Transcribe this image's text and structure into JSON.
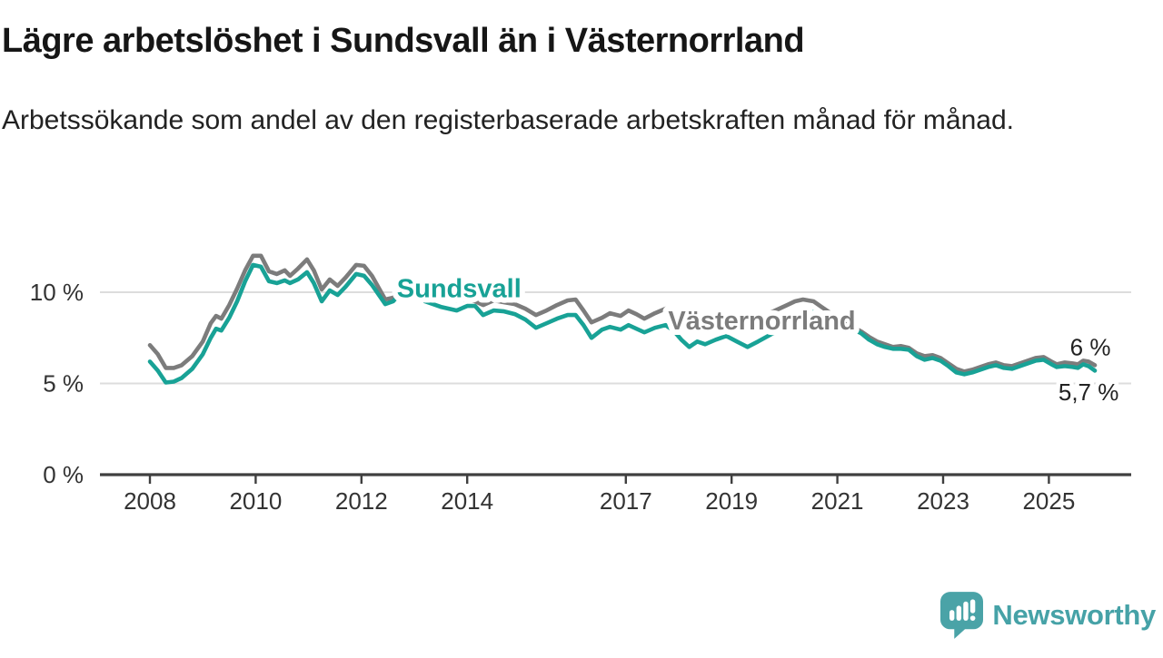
{
  "header": {
    "title": "Lägre arbetslöshet i Sundsvall än i Västernorrland",
    "subtitle": "Arbetssökande som andel av den registerbaserade arbetskraften månad för månad."
  },
  "colors": {
    "sundsvall_teal": "#18a296",
    "vasternorrland_gray": "#7c7c7c",
    "axis_line": "#3f3f3f",
    "axis_text": "#333333",
    "gridline": "#dddddd",
    "end_label_text": "#222222",
    "brand_teal": "#4aa3a7"
  },
  "chart_data": {
    "type": "line",
    "title": "Lägre arbetslöshet i Sundsvall än i Västernorrland",
    "xlabel": "",
    "ylabel": "Arbetssökande som andel av den registerbaserade arbetskraften",
    "legend_position": "inline",
    "grid": "horizontal",
    "x_axis": {
      "range": [
        2007.8,
        2026.5
      ],
      "ticks": [
        {
          "label": "2008",
          "year": 2008
        },
        {
          "label": "2010",
          "year": 2010
        },
        {
          "label": "2012",
          "year": 2012
        },
        {
          "label": "2014",
          "year": 2014
        },
        {
          "label": "2017",
          "year": 2017
        },
        {
          "label": "2019",
          "year": 2019
        },
        {
          "label": "2021",
          "year": 2021
        },
        {
          "label": "2023",
          "year": 2023
        },
        {
          "label": "2025",
          "year": 2025
        }
      ]
    },
    "y_axis": {
      "range": [
        0,
        12.5
      ],
      "unit": "%",
      "ticks": [
        {
          "label": "0 %",
          "value": 0
        },
        {
          "label": "5 %",
          "value": 5
        },
        {
          "label": "10 %",
          "value": 10
        }
      ],
      "gridlines": [
        5,
        10
      ]
    },
    "series": [
      {
        "name": "Västernorrland",
        "color": "#7c7c7c",
        "inline_label": {
          "text": "Västernorrland",
          "year": 2017.8,
          "value": 7.95
        },
        "end_label": {
          "text": "6 %",
          "year": 2025.4,
          "value": 6.55
        },
        "points": [
          [
            2008.0,
            7.1
          ],
          [
            2008.15,
            6.6
          ],
          [
            2008.3,
            5.85
          ],
          [
            2008.45,
            5.85
          ],
          [
            2008.6,
            6.0
          ],
          [
            2008.8,
            6.5
          ],
          [
            2009.0,
            7.3
          ],
          [
            2009.15,
            8.3
          ],
          [
            2009.25,
            8.7
          ],
          [
            2009.35,
            8.55
          ],
          [
            2009.5,
            9.3
          ],
          [
            2009.65,
            10.2
          ],
          [
            2009.8,
            11.2
          ],
          [
            2009.95,
            12.0
          ],
          [
            2010.1,
            12.0
          ],
          [
            2010.25,
            11.15
          ],
          [
            2010.4,
            11.0
          ],
          [
            2010.55,
            11.2
          ],
          [
            2010.65,
            10.9
          ],
          [
            2010.8,
            11.3
          ],
          [
            2010.97,
            11.8
          ],
          [
            2011.1,
            11.2
          ],
          [
            2011.25,
            10.15
          ],
          [
            2011.4,
            10.7
          ],
          [
            2011.55,
            10.35
          ],
          [
            2011.7,
            10.8
          ],
          [
            2011.9,
            11.5
          ],
          [
            2012.05,
            11.45
          ],
          [
            2012.2,
            10.9
          ],
          [
            2012.45,
            9.6
          ],
          [
            2012.6,
            9.7
          ],
          [
            2012.75,
            10.1
          ],
          [
            2012.95,
            10.8
          ],
          [
            2013.2,
            10.2
          ],
          [
            2013.5,
            9.8
          ],
          [
            2013.8,
            9.55
          ],
          [
            2014.0,
            9.6
          ],
          [
            2014.15,
            9.5
          ],
          [
            2014.3,
            9.3
          ],
          [
            2014.5,
            9.55
          ],
          [
            2014.7,
            9.45
          ],
          [
            2014.9,
            9.35
          ],
          [
            2015.1,
            9.1
          ],
          [
            2015.3,
            8.75
          ],
          [
            2015.5,
            9.0
          ],
          [
            2015.7,
            9.3
          ],
          [
            2015.9,
            9.55
          ],
          [
            2016.05,
            9.6
          ],
          [
            2016.2,
            9.0
          ],
          [
            2016.35,
            8.35
          ],
          [
            2016.55,
            8.6
          ],
          [
            2016.7,
            8.85
          ],
          [
            2016.9,
            8.7
          ],
          [
            2017.05,
            9.0
          ],
          [
            2017.2,
            8.8
          ],
          [
            2017.35,
            8.55
          ],
          [
            2017.55,
            8.85
          ],
          [
            2017.75,
            9.1
          ],
          [
            2017.9,
            8.9
          ],
          [
            2018.05,
            8.4
          ],
          [
            2018.2,
            8.0
          ],
          [
            2018.35,
            8.3
          ],
          [
            2018.5,
            8.05
          ],
          [
            2018.7,
            8.35
          ],
          [
            2018.9,
            8.6
          ],
          [
            2019.1,
            8.1
          ],
          [
            2019.3,
            8.2
          ],
          [
            2019.5,
            8.5
          ],
          [
            2019.75,
            8.9
          ],
          [
            2019.9,
            9.1
          ],
          [
            2020.05,
            9.3
          ],
          [
            2020.2,
            9.5
          ],
          [
            2020.35,
            9.6
          ],
          [
            2020.55,
            9.5
          ],
          [
            2020.7,
            9.2
          ],
          [
            2020.85,
            8.9
          ],
          [
            2021.0,
            8.5
          ],
          [
            2021.15,
            8.3
          ],
          [
            2021.3,
            8.1
          ],
          [
            2021.45,
            7.85
          ],
          [
            2021.6,
            7.55
          ],
          [
            2021.75,
            7.3
          ],
          [
            2021.9,
            7.15
          ],
          [
            2022.05,
            7.0
          ],
          [
            2022.2,
            7.05
          ],
          [
            2022.35,
            6.95
          ],
          [
            2022.5,
            6.65
          ],
          [
            2022.65,
            6.5
          ],
          [
            2022.8,
            6.55
          ],
          [
            2022.95,
            6.4
          ],
          [
            2023.1,
            6.1
          ],
          [
            2023.25,
            5.8
          ],
          [
            2023.4,
            5.65
          ],
          [
            2023.55,
            5.75
          ],
          [
            2023.7,
            5.9
          ],
          [
            2023.85,
            6.05
          ],
          [
            2024.0,
            6.15
          ],
          [
            2024.15,
            6.0
          ],
          [
            2024.3,
            5.95
          ],
          [
            2024.45,
            6.1
          ],
          [
            2024.6,
            6.25
          ],
          [
            2024.75,
            6.4
          ],
          [
            2024.9,
            6.45
          ],
          [
            2025.05,
            6.2
          ],
          [
            2025.15,
            6.05
          ],
          [
            2025.3,
            6.15
          ],
          [
            2025.45,
            6.1
          ],
          [
            2025.55,
            6.05
          ],
          [
            2025.65,
            6.25
          ],
          [
            2025.75,
            6.2
          ],
          [
            2025.87,
            6.0
          ]
        ]
      },
      {
        "name": "Sundsvall",
        "color": "#18a296",
        "inline_label": {
          "text": "Sundsvall",
          "year": 2012.67,
          "value": 9.72
        },
        "end_label": {
          "text": "5,7 %",
          "year": 2025.18,
          "value": 4.08
        },
        "points": [
          [
            2008.0,
            6.2
          ],
          [
            2008.15,
            5.7
          ],
          [
            2008.3,
            5.05
          ],
          [
            2008.45,
            5.1
          ],
          [
            2008.6,
            5.3
          ],
          [
            2008.8,
            5.8
          ],
          [
            2009.0,
            6.6
          ],
          [
            2009.15,
            7.5
          ],
          [
            2009.25,
            8.0
          ],
          [
            2009.35,
            7.9
          ],
          [
            2009.5,
            8.6
          ],
          [
            2009.65,
            9.5
          ],
          [
            2009.8,
            10.6
          ],
          [
            2009.95,
            11.5
          ],
          [
            2010.1,
            11.4
          ],
          [
            2010.25,
            10.6
          ],
          [
            2010.4,
            10.5
          ],
          [
            2010.55,
            10.65
          ],
          [
            2010.65,
            10.5
          ],
          [
            2010.8,
            10.7
          ],
          [
            2010.97,
            11.1
          ],
          [
            2011.1,
            10.5
          ],
          [
            2011.25,
            9.5
          ],
          [
            2011.4,
            10.1
          ],
          [
            2011.55,
            9.85
          ],
          [
            2011.7,
            10.3
          ],
          [
            2011.9,
            11.0
          ],
          [
            2012.05,
            10.9
          ],
          [
            2012.2,
            10.4
          ],
          [
            2012.45,
            9.35
          ],
          [
            2012.6,
            9.5
          ],
          [
            2012.75,
            10.0
          ],
          [
            2012.95,
            10.3
          ],
          [
            2013.2,
            9.5
          ],
          [
            2013.5,
            9.2
          ],
          [
            2013.8,
            9.0
          ],
          [
            2014.0,
            9.25
          ],
          [
            2014.15,
            9.25
          ],
          [
            2014.3,
            8.75
          ],
          [
            2014.5,
            9.0
          ],
          [
            2014.7,
            8.95
          ],
          [
            2014.9,
            8.8
          ],
          [
            2015.1,
            8.5
          ],
          [
            2015.3,
            8.05
          ],
          [
            2015.5,
            8.3
          ],
          [
            2015.7,
            8.55
          ],
          [
            2015.9,
            8.75
          ],
          [
            2016.05,
            8.75
          ],
          [
            2016.2,
            8.2
          ],
          [
            2016.35,
            7.5
          ],
          [
            2016.55,
            7.95
          ],
          [
            2016.7,
            8.1
          ],
          [
            2016.9,
            7.95
          ],
          [
            2017.05,
            8.2
          ],
          [
            2017.2,
            8.0
          ],
          [
            2017.35,
            7.8
          ],
          [
            2017.55,
            8.05
          ],
          [
            2017.75,
            8.2
          ],
          [
            2017.9,
            7.9
          ],
          [
            2018.05,
            7.4
          ],
          [
            2018.2,
            7.0
          ],
          [
            2018.35,
            7.3
          ],
          [
            2018.5,
            7.15
          ],
          [
            2018.7,
            7.4
          ],
          [
            2018.9,
            7.6
          ],
          [
            2019.1,
            7.3
          ],
          [
            2019.3,
            7.0
          ],
          [
            2019.5,
            7.3
          ],
          [
            2019.75,
            7.7
          ],
          [
            2019.9,
            7.9
          ],
          [
            2020.05,
            8.2
          ],
          [
            2020.2,
            8.7
          ],
          [
            2020.35,
            9.0
          ],
          [
            2020.55,
            8.9
          ],
          [
            2020.7,
            8.6
          ],
          [
            2020.85,
            8.4
          ],
          [
            2021.0,
            8.2
          ],
          [
            2021.15,
            8.15
          ],
          [
            2021.3,
            7.95
          ],
          [
            2021.45,
            7.75
          ],
          [
            2021.6,
            7.4
          ],
          [
            2021.75,
            7.15
          ],
          [
            2021.9,
            7.0
          ],
          [
            2022.05,
            6.9
          ],
          [
            2022.2,
            6.9
          ],
          [
            2022.35,
            6.85
          ],
          [
            2022.5,
            6.5
          ],
          [
            2022.65,
            6.3
          ],
          [
            2022.8,
            6.4
          ],
          [
            2022.95,
            6.25
          ],
          [
            2023.1,
            5.95
          ],
          [
            2023.25,
            5.6
          ],
          [
            2023.4,
            5.5
          ],
          [
            2023.55,
            5.6
          ],
          [
            2023.7,
            5.75
          ],
          [
            2023.85,
            5.9
          ],
          [
            2024.0,
            6.0
          ],
          [
            2024.15,
            5.85
          ],
          [
            2024.3,
            5.8
          ],
          [
            2024.45,
            5.95
          ],
          [
            2024.6,
            6.1
          ],
          [
            2024.75,
            6.25
          ],
          [
            2024.9,
            6.3
          ],
          [
            2025.05,
            6.05
          ],
          [
            2025.15,
            5.9
          ],
          [
            2025.3,
            5.95
          ],
          [
            2025.45,
            5.9
          ],
          [
            2025.55,
            5.85
          ],
          [
            2025.65,
            6.05
          ],
          [
            2025.75,
            5.95
          ],
          [
            2025.87,
            5.7
          ]
        ]
      }
    ]
  },
  "footer": {
    "brand": "Newsworthy"
  }
}
